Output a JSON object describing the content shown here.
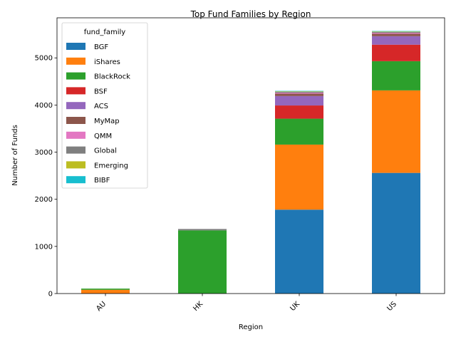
{
  "chart_data": {
    "type": "bar",
    "stacked": true,
    "title": "Top Fund Families by Region",
    "xlabel": "Region",
    "ylabel": "Number of Funds",
    "categories": [
      "AU",
      "HK",
      "UK",
      "US"
    ],
    "ylim": [
      0,
      5850
    ],
    "yticks": [
      0,
      1000,
      2000,
      3000,
      4000,
      5000
    ],
    "grid": false,
    "legend_title": "fund_family",
    "legend_position": "upper-left",
    "series": [
      {
        "name": "BGF",
        "color": "#1f77b4",
        "values": [
          0,
          0,
          1780,
          2560
        ]
      },
      {
        "name": "iShares",
        "color": "#ff7f0e",
        "values": [
          80,
          0,
          1380,
          1750
        ]
      },
      {
        "name": "BlackRock",
        "color": "#2ca02c",
        "values": [
          25,
          1340,
          550,
          620
        ]
      },
      {
        "name": "BSF",
        "color": "#d62728",
        "values": [
          0,
          0,
          280,
          350
        ]
      },
      {
        "name": "ACS",
        "color": "#9467bd",
        "values": [
          0,
          0,
          200,
          180
        ]
      },
      {
        "name": "MyMap",
        "color": "#8c564b",
        "values": [
          0,
          0,
          50,
          50
        ]
      },
      {
        "name": "QMM",
        "color": "#e377c2",
        "values": [
          0,
          0,
          20,
          20
        ]
      },
      {
        "name": "Global",
        "color": "#7f7f7f",
        "values": [
          0,
          30,
          20,
          20
        ]
      },
      {
        "name": "Emerging",
        "color": "#bcbd22",
        "values": [
          0,
          0,
          10,
          10
        ]
      },
      {
        "name": "BIBF",
        "color": "#17becf",
        "values": [
          0,
          0,
          10,
          10
        ]
      }
    ]
  }
}
